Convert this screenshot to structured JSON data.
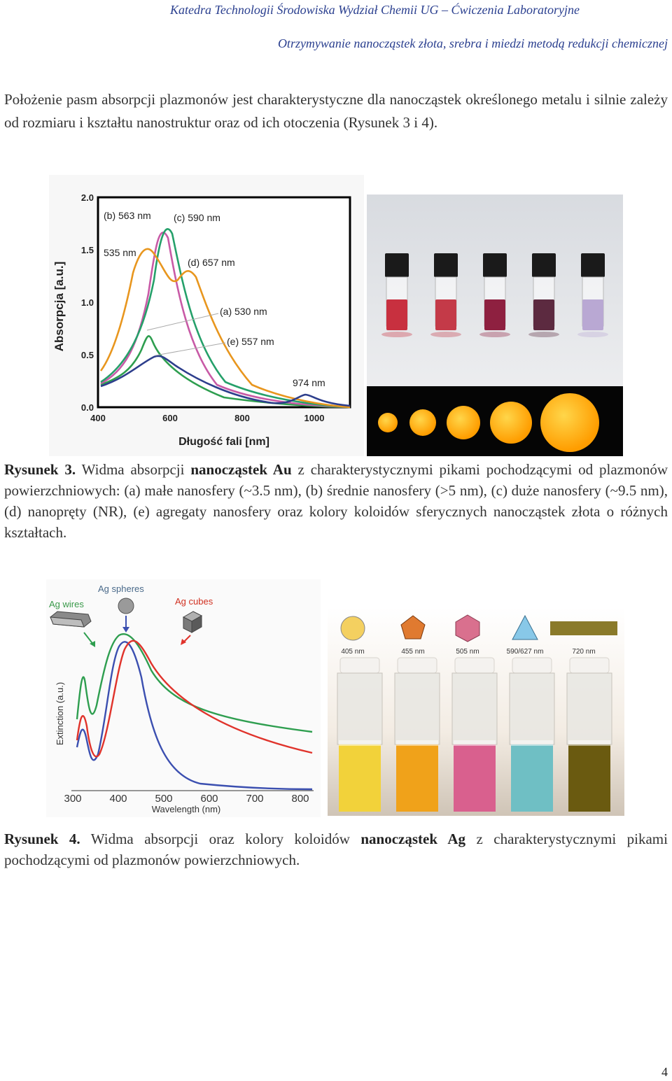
{
  "header": {
    "line1": "Katedra Technologii Środowiska Wydział Chemii UG – Ćwiczenia Laboratoryjne",
    "line2": "Otrzymywanie nanocząstek złota, srebra i miedzi metodą redukcji chemicznej"
  },
  "intro": "Położenie pasm absorpcji plazmonów jest charakterystyczne dla nanocząstek określonego metalu i silnie zależy od rozmiaru i kształtu nanostruktur oraz od ich otoczenia (Rysunek 3 i 4).",
  "figure3": {
    "chart": {
      "ylabel": "Absorpcja [a.u.]",
      "xlabel": "Długość fali [nm]",
      "yticks": [
        "0.0",
        "0.5",
        "1.0",
        "1.5",
        "2.0"
      ],
      "xticks": [
        "400",
        "600",
        "800",
        "1000"
      ],
      "labels": {
        "b": "(b) 563 nm",
        "c": "(c) 590 nm",
        "a535": "535 nm",
        "d": "(d) 657 nm",
        "a": "(a) 530 nm",
        "e": "(e) 557 nm",
        "nir": "974 nm"
      },
      "colors": {
        "a": "#2e9e4f",
        "b": "#c85aa6",
        "c": "#25a06a",
        "d": "#e8961e",
        "e": "#2d3e8c"
      }
    },
    "photo": {
      "vial_colors": [
        "#c8303f",
        "#c43a48",
        "#8e2040",
        "#5c2a40",
        "#b9a8d3"
      ],
      "sphere_color": "#ffb300"
    },
    "caption": {
      "label": "Rysunek 3.",
      "pre": " Widma absorpcji ",
      "bold": "nanocząstek Au",
      "post": " z charakterystycznymi pikami pochodzącymi od plazmonów powierzchniowych: (a) małe nanosfery (~3.5 nm), (b) średnie nanosfery (>5 nm), (c) duże nanosfery (~9.5 nm), (d) nanopręty (NR), (e) agregaty nanosfery oraz kolory koloidów sferycznych nanocząstek złota o różnych kształtach."
    }
  },
  "figure4": {
    "chart": {
      "ylabel": "Extinction (a.u.)",
      "xlabel": "Wavelength (nm)",
      "xticks": [
        "300",
        "400",
        "500",
        "600",
        "700",
        "800"
      ],
      "labels": {
        "wires": "Ag wires",
        "spheres": "Ag spheres",
        "cubes": "Ag cubes"
      },
      "colors": {
        "wires": "#2e9e4f",
        "spheres": "#3b4fb0",
        "cubes": "#e0332b"
      }
    },
    "photo": {
      "shapes": [
        {
          "label": "405 nm",
          "color": "#f4d060"
        },
        {
          "label": "455 nm",
          "color": "#e07a30"
        },
        {
          "label": "505 nm",
          "color": "#d9708e"
        },
        {
          "label": "590/627 nm",
          "color": "#88c8e8"
        },
        {
          "label": "720 nm",
          "color": "#8a7a2a"
        }
      ],
      "cuvette_colors": [
        "#f2d23a",
        "#f0a21a",
        "#d9608e",
        "#6fbfc4",
        "#6a5a10"
      ]
    },
    "caption": {
      "label": "Rysunek 4.",
      "pre": " Widma absorpcji oraz kolory koloidów ",
      "bold": "nanocząstek Ag",
      "post": " z charakterystycznymi pikami pochodzącymi od plazmonów powierzchniowych."
    }
  },
  "page_number": "4"
}
